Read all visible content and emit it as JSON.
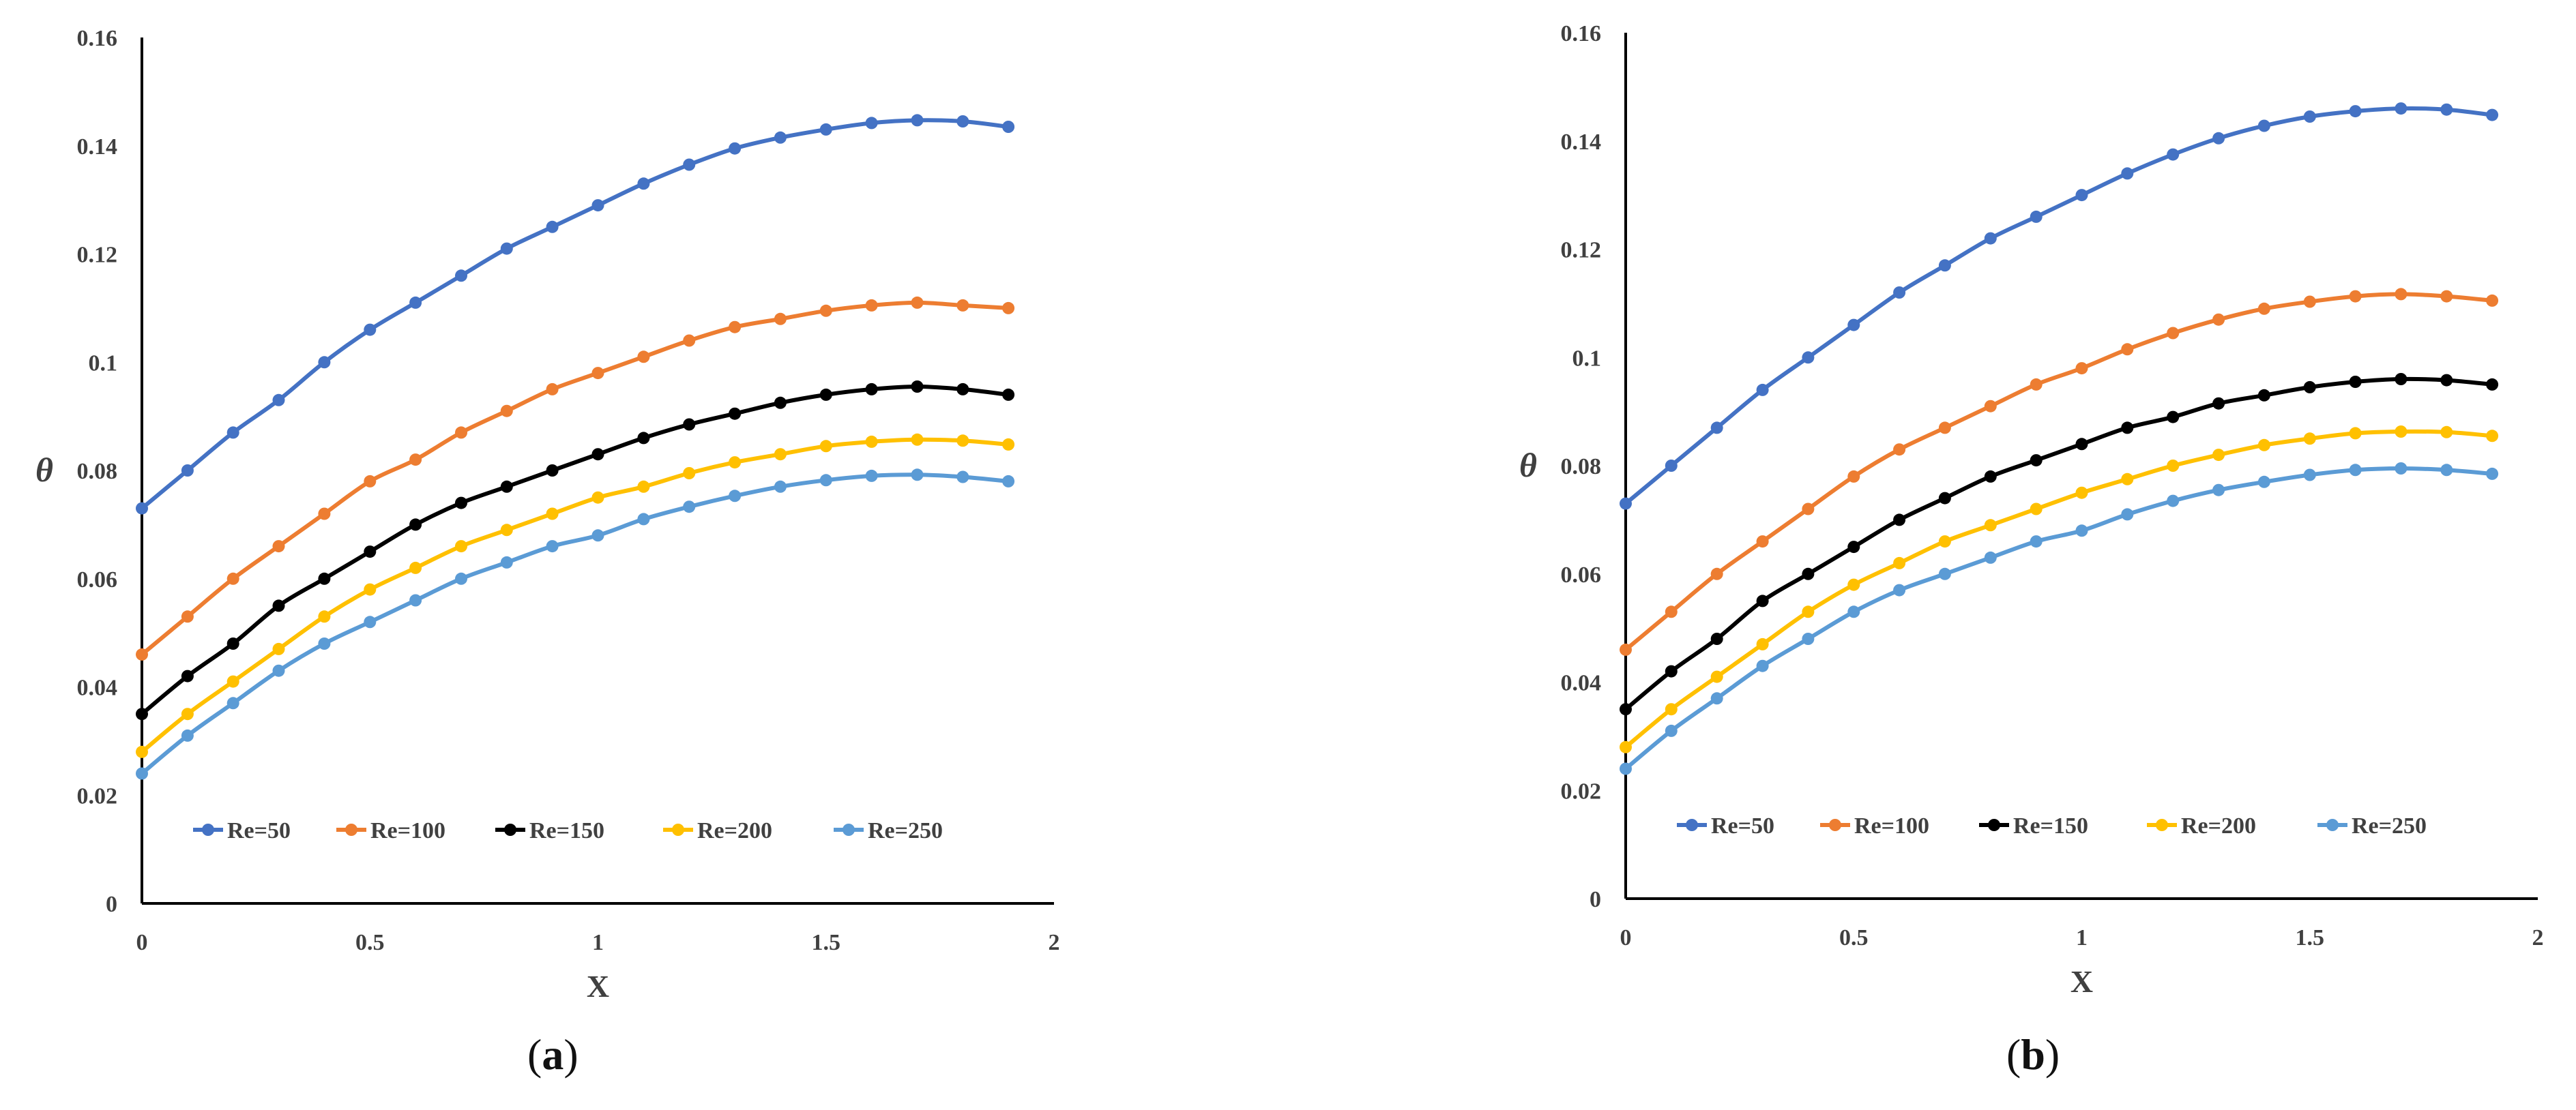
{
  "chart_data": [
    {
      "type": "line",
      "caption_open": "(",
      "caption_letter": "a",
      "caption_close": ")",
      "xlabel": "X",
      "ylabel": "θ",
      "xlim": [
        0,
        2
      ],
      "ylim": [
        0,
        0.16
      ],
      "x_ticks": [
        "0",
        "0.5",
        "1",
        "1.5",
        "2"
      ],
      "y_ticks": [
        "0",
        "0.02",
        "0.04",
        "0.06",
        "0.08",
        "0.1",
        "0.12",
        "0.14",
        "0.16"
      ],
      "grid": false,
      "legend": "bottom",
      "x": [
        0,
        0.1,
        0.2,
        0.3,
        0.4,
        0.5,
        0.6,
        0.7,
        0.8,
        0.9,
        1.0,
        1.1,
        1.2,
        1.3,
        1.4,
        1.5,
        1.6,
        1.7,
        1.8,
        1.9
      ],
      "series": [
        {
          "name": "Re=50",
          "color": "#4472C4",
          "values": [
            0.073,
            0.08,
            0.087,
            0.093,
            0.1,
            0.106,
            0.111,
            0.116,
            0.121,
            0.125,
            0.129,
            0.133,
            0.1365,
            0.1395,
            0.1415,
            0.143,
            0.1442,
            0.1447,
            0.1445,
            0.1435
          ]
        },
        {
          "name": "Re=100",
          "color": "#ED7D31",
          "values": [
            0.046,
            0.053,
            0.06,
            0.066,
            0.072,
            0.078,
            0.082,
            0.087,
            0.091,
            0.095,
            0.098,
            0.101,
            0.104,
            0.1065,
            0.108,
            0.1095,
            0.1105,
            0.111,
            0.1105,
            0.11
          ]
        },
        {
          "name": "Re=150",
          "color": "#000000",
          "values": [
            0.035,
            0.042,
            0.048,
            0.055,
            0.06,
            0.065,
            0.07,
            0.074,
            0.077,
            0.08,
            0.083,
            0.086,
            0.0885,
            0.0905,
            0.0925,
            0.094,
            0.095,
            0.0955,
            0.095,
            0.094
          ]
        },
        {
          "name": "Re=200",
          "color": "#FFC000",
          "values": [
            0.028,
            0.035,
            0.041,
            0.047,
            0.053,
            0.058,
            0.062,
            0.066,
            0.069,
            0.072,
            0.075,
            0.077,
            0.0795,
            0.0815,
            0.083,
            0.0845,
            0.0853,
            0.0857,
            0.0855,
            0.0848
          ]
        },
        {
          "name": "Re=250",
          "color": "#5B9BD5",
          "values": [
            0.024,
            0.031,
            0.037,
            0.043,
            0.048,
            0.052,
            0.056,
            0.06,
            0.063,
            0.066,
            0.068,
            0.071,
            0.0733,
            0.0753,
            0.077,
            0.0782,
            0.079,
            0.0792,
            0.0788,
            0.078
          ]
        }
      ]
    },
    {
      "type": "line",
      "caption_open": "(",
      "caption_letter": "b",
      "caption_close": ")",
      "xlabel": "X",
      "ylabel": "θ",
      "xlim": [
        0,
        2
      ],
      "ylim": [
        0,
        0.16
      ],
      "x_ticks": [
        "0",
        "0.5",
        "1",
        "1.5",
        "2"
      ],
      "y_ticks": [
        "0",
        "0.02",
        "0.04",
        "0.06",
        "0.08",
        "0.1",
        "0.12",
        "0.14",
        "0.16"
      ],
      "grid": false,
      "legend": "bottom",
      "x": [
        0,
        0.1,
        0.2,
        0.3,
        0.4,
        0.5,
        0.6,
        0.7,
        0.8,
        0.9,
        1.0,
        1.1,
        1.2,
        1.3,
        1.4,
        1.5,
        1.6,
        1.7,
        1.8,
        1.9
      ],
      "series": [
        {
          "name": "Re=50",
          "color": "#4472C4",
          "values": [
            0.073,
            0.08,
            0.087,
            0.094,
            0.1,
            0.106,
            0.112,
            0.117,
            0.122,
            0.126,
            0.13,
            0.134,
            0.1375,
            0.1405,
            0.1428,
            0.1445,
            0.1455,
            0.146,
            0.1458,
            0.1448
          ]
        },
        {
          "name": "Re=100",
          "color": "#ED7D31",
          "values": [
            0.046,
            0.053,
            0.06,
            0.066,
            0.072,
            0.078,
            0.083,
            0.087,
            0.091,
            0.095,
            0.098,
            0.1015,
            0.1045,
            0.107,
            0.109,
            0.1103,
            0.1113,
            0.1117,
            0.1113,
            0.1105
          ]
        },
        {
          "name": "Re=150",
          "color": "#000000",
          "values": [
            0.035,
            0.042,
            0.048,
            0.055,
            0.06,
            0.065,
            0.07,
            0.074,
            0.078,
            0.081,
            0.084,
            0.087,
            0.089,
            0.0915,
            0.093,
            0.0945,
            0.0955,
            0.096,
            0.0958,
            0.095
          ]
        },
        {
          "name": "Re=200",
          "color": "#FFC000",
          "values": [
            0.028,
            0.035,
            0.041,
            0.047,
            0.053,
            0.058,
            0.062,
            0.066,
            0.069,
            0.072,
            0.075,
            0.0775,
            0.08,
            0.082,
            0.0838,
            0.085,
            0.086,
            0.0863,
            0.0862,
            0.0855
          ]
        },
        {
          "name": "Re=250",
          "color": "#5B9BD5",
          "values": [
            0.024,
            0.031,
            0.037,
            0.043,
            0.048,
            0.053,
            0.057,
            0.06,
            0.063,
            0.066,
            0.068,
            0.071,
            0.0735,
            0.0755,
            0.077,
            0.0783,
            0.0792,
            0.0795,
            0.0792,
            0.0785
          ]
        }
      ]
    }
  ]
}
